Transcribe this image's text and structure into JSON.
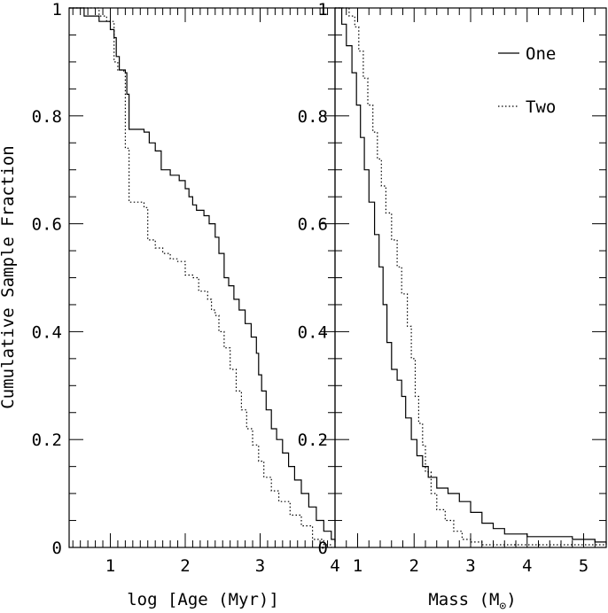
{
  "chart_data": [
    {
      "type": "line",
      "title": "",
      "xlabel": "log [Age (Myr)]",
      "ylabel": "Cumulative Sample Fraction",
      "xlim": [
        0.45,
        4.0
      ],
      "ylim": [
        0,
        1
      ],
      "xticks": [
        {
          "value": 1,
          "label": "1"
        },
        {
          "value": 2,
          "label": "2"
        },
        {
          "value": 3,
          "label": "3"
        },
        {
          "value": 4,
          "label": "4"
        }
      ],
      "yticks": [
        {
          "value": 0,
          "label": "0"
        },
        {
          "value": 0.2,
          "label": "0.2"
        },
        {
          "value": 0.4,
          "label": "0.4"
        },
        {
          "value": 0.6,
          "label": "0.6"
        },
        {
          "value": 0.8,
          "label": "0.8"
        },
        {
          "value": 1,
          "label": "1"
        }
      ],
      "series": [
        {
          "name": "One",
          "style": "solid",
          "points": [
            [
              0.45,
              1.0
            ],
            [
              0.65,
              0.985
            ],
            [
              0.85,
              0.975
            ],
            [
              1.0,
              0.96
            ],
            [
              1.05,
              0.945
            ],
            [
              1.08,
              0.91
            ],
            [
              1.12,
              0.885
            ],
            [
              1.2,
              0.88
            ],
            [
              1.22,
              0.84
            ],
            [
              1.25,
              0.775
            ],
            [
              1.45,
              0.77
            ],
            [
              1.52,
              0.75
            ],
            [
              1.6,
              0.735
            ],
            [
              1.68,
              0.7
            ],
            [
              1.8,
              0.69
            ],
            [
              1.92,
              0.68
            ],
            [
              2.0,
              0.665
            ],
            [
              2.05,
              0.65
            ],
            [
              2.1,
              0.635
            ],
            [
              2.15,
              0.625
            ],
            [
              2.25,
              0.615
            ],
            [
              2.32,
              0.6
            ],
            [
              2.4,
              0.575
            ],
            [
              2.45,
              0.545
            ],
            [
              2.52,
              0.5
            ],
            [
              2.58,
              0.485
            ],
            [
              2.65,
              0.46
            ],
            [
              2.72,
              0.44
            ],
            [
              2.8,
              0.415
            ],
            [
              2.88,
              0.39
            ],
            [
              2.95,
              0.36
            ],
            [
              2.98,
              0.32
            ],
            [
              3.02,
              0.29
            ],
            [
              3.08,
              0.255
            ],
            [
              3.15,
              0.22
            ],
            [
              3.22,
              0.2
            ],
            [
              3.3,
              0.175
            ],
            [
              3.38,
              0.15
            ],
            [
              3.46,
              0.125
            ],
            [
              3.55,
              0.1
            ],
            [
              3.65,
              0.075
            ],
            [
              3.75,
              0.05
            ],
            [
              3.85,
              0.03
            ],
            [
              3.95,
              0.015
            ],
            [
              4.0,
              0.01
            ]
          ]
        },
        {
          "name": "Two",
          "style": "dotted",
          "points": [
            [
              0.45,
              1.0
            ],
            [
              0.85,
              0.985
            ],
            [
              0.95,
              0.975
            ],
            [
              1.05,
              0.9
            ],
            [
              1.1,
              0.885
            ],
            [
              1.18,
              0.88
            ],
            [
              1.2,
              0.74
            ],
            [
              1.25,
              0.64
            ],
            [
              1.45,
              0.63
            ],
            [
              1.5,
              0.57
            ],
            [
              1.6,
              0.555
            ],
            [
              1.7,
              0.545
            ],
            [
              1.8,
              0.535
            ],
            [
              1.9,
              0.53
            ],
            [
              2.0,
              0.505
            ],
            [
              2.1,
              0.5
            ],
            [
              2.18,
              0.475
            ],
            [
              2.3,
              0.46
            ],
            [
              2.35,
              0.44
            ],
            [
              2.4,
              0.43
            ],
            [
              2.45,
              0.4
            ],
            [
              2.52,
              0.37
            ],
            [
              2.6,
              0.33
            ],
            [
              2.68,
              0.29
            ],
            [
              2.75,
              0.255
            ],
            [
              2.82,
              0.22
            ],
            [
              2.9,
              0.19
            ],
            [
              2.98,
              0.16
            ],
            [
              3.05,
              0.13
            ],
            [
              3.15,
              0.105
            ],
            [
              3.25,
              0.085
            ],
            [
              3.4,
              0.06
            ],
            [
              3.55,
              0.04
            ],
            [
              3.7,
              0.015
            ],
            [
              3.85,
              0.005
            ],
            [
              3.95,
              0.0
            ]
          ]
        }
      ]
    },
    {
      "type": "line",
      "title": "",
      "xlabel": "Mass (M",
      "xlabel_symbol": "⊙",
      "xlabel_suffix": ")",
      "ylabel": "",
      "xlim": [
        0.6,
        5.4
      ],
      "ylim": [
        0,
        1
      ],
      "xticks": [
        {
          "value": 1,
          "label": "1"
        },
        {
          "value": 2,
          "label": "2"
        },
        {
          "value": 3,
          "label": "3"
        },
        {
          "value": 4,
          "label": "4"
        },
        {
          "value": 5,
          "label": "5"
        }
      ],
      "yticks": [
        {
          "value": 0,
          "label": "0"
        },
        {
          "value": 0.2,
          "label": "0.2"
        },
        {
          "value": 0.4,
          "label": "0.4"
        },
        {
          "value": 0.6,
          "label": "0.6"
        },
        {
          "value": 0.8,
          "label": "0.8"
        },
        {
          "value": 1,
          "label": "1"
        }
      ],
      "legend": {
        "position": "top-right",
        "entries": [
          {
            "label": "One",
            "style": "solid"
          },
          {
            "label": "Two",
            "style": "dotted"
          }
        ]
      },
      "series": [
        {
          "name": "One",
          "style": "solid",
          "points": [
            [
              0.6,
              1.0
            ],
            [
              0.72,
              0.97
            ],
            [
              0.8,
              0.93
            ],
            [
              0.9,
              0.88
            ],
            [
              0.98,
              0.82
            ],
            [
              1.05,
              0.76
            ],
            [
              1.12,
              0.7
            ],
            [
              1.2,
              0.64
            ],
            [
              1.3,
              0.58
            ],
            [
              1.38,
              0.52
            ],
            [
              1.45,
              0.45
            ],
            [
              1.52,
              0.38
            ],
            [
              1.6,
              0.33
            ],
            [
              1.7,
              0.31
            ],
            [
              1.78,
              0.28
            ],
            [
              1.85,
              0.24
            ],
            [
              1.95,
              0.2
            ],
            [
              2.05,
              0.17
            ],
            [
              2.15,
              0.15
            ],
            [
              2.25,
              0.13
            ],
            [
              2.4,
              0.11
            ],
            [
              2.6,
              0.1
            ],
            [
              2.8,
              0.085
            ],
            [
              3.0,
              0.065
            ],
            [
              3.2,
              0.045
            ],
            [
              3.4,
              0.035
            ],
            [
              3.6,
              0.025
            ],
            [
              4.0,
              0.02
            ],
            [
              4.8,
              0.015
            ],
            [
              5.2,
              0.01
            ],
            [
              5.4,
              0.005
            ]
          ]
        },
        {
          "name": "Two",
          "style": "dotted",
          "points": [
            [
              0.6,
              1.0
            ],
            [
              0.85,
              0.985
            ],
            [
              0.95,
              0.965
            ],
            [
              1.02,
              0.92
            ],
            [
              1.1,
              0.87
            ],
            [
              1.18,
              0.82
            ],
            [
              1.27,
              0.77
            ],
            [
              1.35,
              0.72
            ],
            [
              1.42,
              0.67
            ],
            [
              1.5,
              0.62
            ],
            [
              1.6,
              0.57
            ],
            [
              1.7,
              0.52
            ],
            [
              1.78,
              0.47
            ],
            [
              1.88,
              0.41
            ],
            [
              1.95,
              0.35
            ],
            [
              2.02,
              0.28
            ],
            [
              2.08,
              0.23
            ],
            [
              2.15,
              0.19
            ],
            [
              2.2,
              0.14
            ],
            [
              2.3,
              0.1
            ],
            [
              2.4,
              0.07
            ],
            [
              2.55,
              0.05
            ],
            [
              2.7,
              0.03
            ],
            [
              2.85,
              0.015
            ],
            [
              3.0,
              0.01
            ],
            [
              3.2,
              0.005
            ],
            [
              5.4,
              0.005
            ]
          ]
        }
      ]
    }
  ]
}
